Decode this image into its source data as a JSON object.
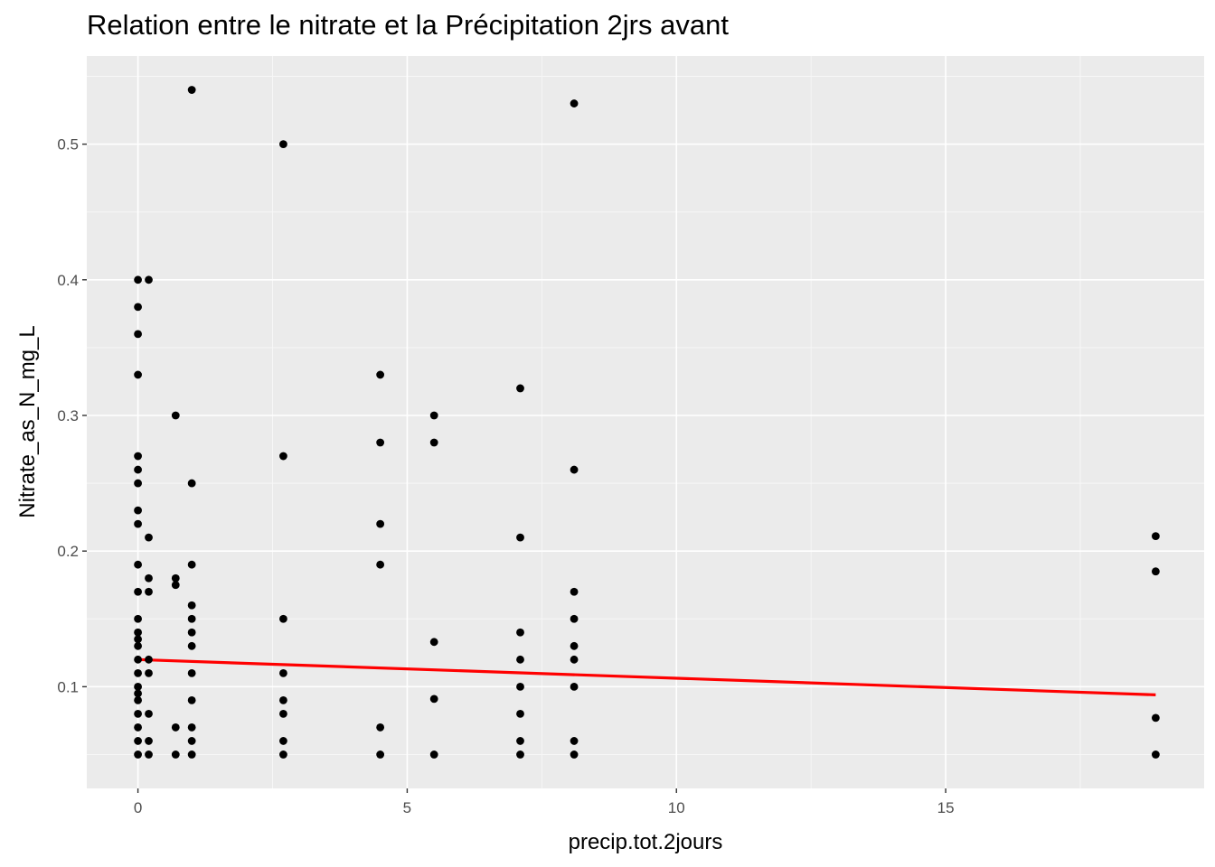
{
  "chart_data": {
    "type": "scatter",
    "title": "Relation entre le nitrate et la Précipitation 2jrs avant",
    "xlabel": "precip.tot.2jours",
    "ylabel": "Nitrate_as_N_mg_L",
    "xlim": [
      -0.95,
      19.8
    ],
    "ylim": [
      0.025,
      0.565
    ],
    "x_ticks": [
      0,
      5,
      10,
      15
    ],
    "y_ticks": [
      0.1,
      0.2,
      0.3,
      0.4,
      0.5
    ],
    "x_tick_labels": [
      "0",
      "5",
      "10",
      "15"
    ],
    "y_tick_labels": [
      "0.1",
      "0.2",
      "0.3",
      "0.4",
      "0.5"
    ],
    "grid": true,
    "background": "#ebebeb",
    "point_color": "#000000",
    "trend_line_color": "#ff0000",
    "points": [
      [
        0,
        0.4
      ],
      [
        0,
        0.38
      ],
      [
        0,
        0.36
      ],
      [
        0,
        0.33
      ],
      [
        0,
        0.27
      ],
      [
        0,
        0.26
      ],
      [
        0,
        0.25
      ],
      [
        0,
        0.23
      ],
      [
        0,
        0.22
      ],
      [
        0,
        0.19
      ],
      [
        0,
        0.17
      ],
      [
        0,
        0.15
      ],
      [
        0,
        0.14
      ],
      [
        0,
        0.135
      ],
      [
        0,
        0.13
      ],
      [
        0,
        0.12
      ],
      [
        0,
        0.11
      ],
      [
        0,
        0.1
      ],
      [
        0,
        0.095
      ],
      [
        0,
        0.09
      ],
      [
        0,
        0.08
      ],
      [
        0,
        0.07
      ],
      [
        0,
        0.06
      ],
      [
        0,
        0.05
      ],
      [
        0.2,
        0.4
      ],
      [
        0.2,
        0.21
      ],
      [
        0.2,
        0.18
      ],
      [
        0.2,
        0.17
      ],
      [
        0.2,
        0.12
      ],
      [
        0.2,
        0.11
      ],
      [
        0.2,
        0.08
      ],
      [
        0.2,
        0.06
      ],
      [
        0.2,
        0.05
      ],
      [
        0.7,
        0.3
      ],
      [
        0.7,
        0.18
      ],
      [
        0.7,
        0.175
      ],
      [
        0.7,
        0.07
      ],
      [
        0.7,
        0.05
      ],
      [
        1,
        0.54
      ],
      [
        1,
        0.25
      ],
      [
        1,
        0.19
      ],
      [
        1,
        0.16
      ],
      [
        1,
        0.15
      ],
      [
        1,
        0.14
      ],
      [
        1,
        0.13
      ],
      [
        1,
        0.11
      ],
      [
        1,
        0.09
      ],
      [
        1,
        0.07
      ],
      [
        1,
        0.06
      ],
      [
        1,
        0.05
      ],
      [
        2.7,
        0.5
      ],
      [
        2.7,
        0.27
      ],
      [
        2.7,
        0.15
      ],
      [
        2.7,
        0.11
      ],
      [
        2.7,
        0.09
      ],
      [
        2.7,
        0.08
      ],
      [
        2.7,
        0.06
      ],
      [
        2.7,
        0.05
      ],
      [
        4.5,
        0.33
      ],
      [
        4.5,
        0.28
      ],
      [
        4.5,
        0.22
      ],
      [
        4.5,
        0.19
      ],
      [
        4.5,
        0.07
      ],
      [
        4.5,
        0.05
      ],
      [
        5.5,
        0.3
      ],
      [
        5.5,
        0.28
      ],
      [
        5.5,
        0.133
      ],
      [
        5.5,
        0.091
      ],
      [
        5.5,
        0.05
      ],
      [
        7.1,
        0.32
      ],
      [
        7.1,
        0.21
      ],
      [
        7.1,
        0.14
      ],
      [
        7.1,
        0.12
      ],
      [
        7.1,
        0.1
      ],
      [
        7.1,
        0.08
      ],
      [
        7.1,
        0.06
      ],
      [
        7.1,
        0.05
      ],
      [
        8.1,
        0.53
      ],
      [
        8.1,
        0.26
      ],
      [
        8.1,
        0.17
      ],
      [
        8.1,
        0.15
      ],
      [
        8.1,
        0.13
      ],
      [
        8.1,
        0.12
      ],
      [
        8.1,
        0.1
      ],
      [
        8.1,
        0.06
      ],
      [
        8.1,
        0.05
      ],
      [
        18.9,
        0.211
      ],
      [
        18.9,
        0.185
      ],
      [
        18.9,
        0.077
      ],
      [
        18.9,
        0.05
      ]
    ],
    "trend_line": {
      "x": [
        0,
        18.9
      ],
      "y": [
        0.12,
        0.094
      ]
    }
  }
}
